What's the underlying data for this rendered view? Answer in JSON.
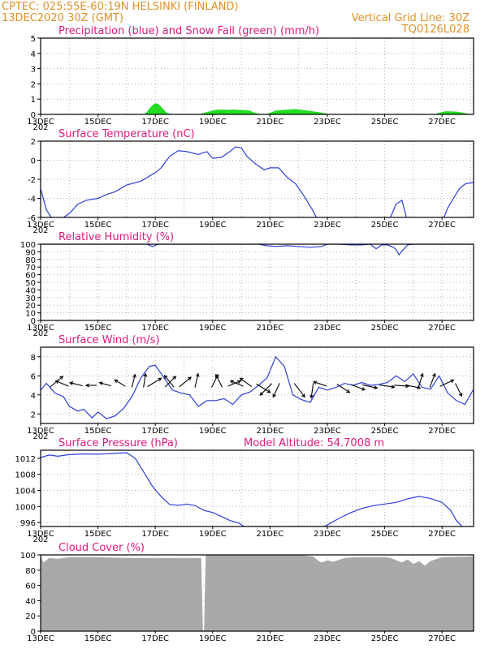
{
  "header": {
    "left_line1": "CPTEC:   025:55E-60:19N   HELSINKI (FINLAND)",
    "left_line2": "13DEC2020 30Z (GMT)",
    "right_line1": "Vertical Grid Line: 30Z",
    "right_line2": "TQ0126L028"
  },
  "x_tick_labels": [
    "13DEC",
    "15DEC",
    "17DEC",
    "19DEC",
    "21DEC",
    "23DEC",
    "25DEC",
    "27DEC"
  ],
  "x_sublabel": "202",
  "colors": {
    "header": "#e0902a",
    "title": "#e0197d",
    "line": "#2b3fd9",
    "snow": "#22dd22",
    "cloud": "#a9a9a9",
    "grid": "#b5b5b5"
  },
  "chart_data": [
    {
      "id": "precip",
      "type": "area",
      "title": "Precipitation (blue) and Snow Fall (green) (mm/h)",
      "ylim": [
        0,
        5
      ],
      "yticks": [
        0,
        1,
        2,
        3,
        4,
        5
      ],
      "xlim": [
        13.0,
        28.1
      ],
      "grid": true,
      "series": [
        {
          "name": "Precipitation",
          "color": "#2b3fd9",
          "x": [
            13.0,
            16.9,
            17.0,
            17.1,
            17.3,
            17.5,
            19.4,
            19.5,
            20.3,
            21.4,
            22.9,
            26.6,
            27.5,
            28.1
          ],
          "values": [
            0,
            0,
            0.02,
            0.05,
            0.02,
            0,
            0,
            0.03,
            0,
            0.03,
            0,
            0,
            0.02,
            0
          ]
        },
        {
          "name": "Snow Fall",
          "color": "#22dd22",
          "x": [
            13.0,
            16.6,
            16.7,
            16.8,
            16.9,
            17.0,
            17.1,
            17.2,
            17.3,
            17.4,
            17.6,
            18.5,
            18.7,
            18.9,
            19.1,
            19.3,
            19.5,
            19.7,
            19.9,
            20.1,
            20.3,
            20.4,
            20.6,
            20.8,
            21.0,
            21.2,
            21.5,
            21.7,
            21.9,
            22.1,
            22.3,
            22.5,
            22.7,
            22.9,
            23.1,
            26.7,
            26.9,
            27.1,
            27.3,
            27.5,
            27.7,
            27.9,
            28.1
          ],
          "values": [
            0,
            0,
            0.15,
            0.4,
            0.6,
            0.72,
            0.7,
            0.5,
            0.3,
            0.1,
            0,
            0,
            0.1,
            0.2,
            0.3,
            0.32,
            0.3,
            0.32,
            0.3,
            0.28,
            0.25,
            0.15,
            0.05,
            0,
            0.1,
            0.25,
            0.3,
            0.32,
            0.35,
            0.3,
            0.25,
            0.2,
            0.15,
            0.08,
            0,
            0,
            0.1,
            0.2,
            0.2,
            0.18,
            0.12,
            0.05,
            0
          ]
        }
      ]
    },
    {
      "id": "temp",
      "type": "line",
      "title": "Surface Temperature (nC)",
      "ylim": [
        -6,
        2
      ],
      "yticks": [
        -6,
        -4,
        -2,
        0,
        2
      ],
      "xlim": [
        13.0,
        28.1
      ],
      "grid": true,
      "series": [
        {
          "color": "#2b3fd9",
          "x": [
            13.0,
            13.2,
            13.5,
            14.0,
            14.3,
            14.6,
            15.0,
            15.3,
            15.6,
            16.0,
            16.5,
            17.0,
            17.2,
            17.5,
            17.8,
            18.1,
            18.5,
            18.8,
            19.0,
            19.3,
            19.6,
            19.8,
            20.0,
            20.2,
            20.5,
            20.8,
            21.0,
            21.3,
            21.6,
            21.9,
            22.2,
            22.5,
            22.7,
            25.2,
            25.4,
            25.6,
            25.8,
            27.0,
            27.2,
            27.4,
            27.6,
            27.8,
            28.1
          ],
          "values": [
            -3.0,
            -5.2,
            -6.6,
            -5.6,
            -4.6,
            -4.2,
            -4.0,
            -3.6,
            -3.3,
            -2.6,
            -2.2,
            -1.3,
            -0.8,
            0.4,
            1.0,
            0.9,
            0.6,
            0.9,
            0.2,
            0.3,
            0.9,
            1.4,
            1.3,
            0.4,
            -0.4,
            -1.0,
            -0.8,
            -0.8,
            -1.8,
            -2.5,
            -3.8,
            -5.3,
            -6.5,
            -6.0,
            -4.6,
            -4.2,
            -6.5,
            -6.5,
            -5.0,
            -4.0,
            -3.0,
            -2.5,
            -2.3
          ]
        }
      ]
    },
    {
      "id": "rh",
      "type": "line",
      "title": "Relative Humidity (%)",
      "ylim": [
        0,
        100
      ],
      "yticks": [
        0,
        10,
        20,
        30,
        40,
        50,
        60,
        70,
        80,
        90,
        100
      ],
      "xlim": [
        13.0,
        28.1
      ],
      "grid": true,
      "series": [
        {
          "color": "#2b3fd9",
          "x": [
            13.0,
            16.7,
            16.9,
            17.1,
            17.3,
            20.6,
            20.9,
            21.2,
            21.6,
            22.0,
            22.4,
            22.8,
            23.0,
            23.4,
            23.8,
            24.2,
            24.5,
            24.7,
            24.9,
            25.1,
            25.3,
            25.4,
            25.5,
            25.6,
            25.8,
            26.0,
            28.1
          ],
          "values": [
            100,
            100,
            97,
            100,
            100,
            100,
            98,
            97,
            98,
            97,
            96,
            97,
            100,
            100,
            99,
            99,
            100,
            94,
            99,
            99,
            96,
            93,
            86,
            91,
            99,
            100,
            100
          ]
        }
      ]
    },
    {
      "id": "wind",
      "type": "line",
      "title": "Surface Wind (m/s)",
      "ylim": [
        1,
        9
      ],
      "yticks": [
        2,
        4,
        6,
        8
      ],
      "xlim": [
        13.0,
        28.1
      ],
      "grid": true,
      "series": [
        {
          "color": "#2b3fd9",
          "x": [
            13.0,
            13.2,
            13.5,
            13.8,
            14.0,
            14.3,
            14.5,
            14.8,
            15.0,
            15.3,
            15.6,
            15.9,
            16.2,
            16.5,
            16.8,
            17.0,
            17.3,
            17.6,
            17.9,
            18.2,
            18.5,
            18.8,
            19.1,
            19.4,
            19.7,
            20.0,
            20.3,
            20.6,
            20.9,
            21.2,
            21.5,
            21.8,
            22.1,
            22.4,
            22.7,
            23.0,
            23.3,
            23.6,
            23.9,
            24.2,
            24.5,
            24.8,
            25.1,
            25.4,
            25.7,
            26.0,
            26.3,
            26.6,
            26.9,
            27.2,
            27.5,
            27.8,
            28.1
          ],
          "values": [
            4.5,
            5.2,
            4.2,
            3.8,
            2.8,
            2.3,
            2.5,
            1.6,
            2.2,
            1.5,
            1.8,
            2.6,
            3.9,
            5.8,
            7.0,
            7.1,
            5.8,
            4.5,
            4.2,
            4.0,
            2.8,
            3.4,
            3.4,
            3.6,
            3.0,
            4.0,
            4.3,
            5.0,
            5.8,
            8.0,
            7.0,
            4.0,
            3.5,
            3.2,
            4.8,
            4.5,
            4.8,
            5.2,
            5.0,
            5.3,
            5.0,
            5.1,
            5.3,
            6.0,
            5.4,
            6.2,
            4.8,
            4.6,
            6.0,
            4.2,
            3.4,
            3.0,
            4.6
          ]
        }
      ],
      "barbs": [
        {
          "day": 13.4,
          "u": 1.2,
          "v": 1.0
        },
        {
          "day": 13.9,
          "u": -1.2,
          "v": 0.5
        },
        {
          "day": 14.4,
          "u": -1.2,
          "v": 0.3
        },
        {
          "day": 14.9,
          "u": -1.0,
          "v": 0.0
        },
        {
          "day": 15.4,
          "u": -1.1,
          "v": 0.3
        },
        {
          "day": 15.9,
          "u": -1.0,
          "v": 0.6
        },
        {
          "day": 16.2,
          "u": 0.3,
          "v": 1.2
        },
        {
          "day": 16.6,
          "u": 0.2,
          "v": 1.3
        },
        {
          "day": 16.8,
          "u": 1.3,
          "v": 0.8
        },
        {
          "day": 17.4,
          "u": 1.0,
          "v": 1.0
        },
        {
          "day": 17.6,
          "u": -0.9,
          "v": 1.1
        },
        {
          "day": 17.9,
          "u": 1.1,
          "v": 0.9
        },
        {
          "day": 18.4,
          "u": 0.3,
          "v": 1.3
        },
        {
          "day": 19.0,
          "u": 0.6,
          "v": 1.2
        },
        {
          "day": 19.3,
          "u": -0.6,
          "v": 1.2
        },
        {
          "day": 19.6,
          "u": 1.2,
          "v": 0.5
        },
        {
          "day": 20.0,
          "u": -1.2,
          "v": 0.5
        },
        {
          "day": 20.3,
          "u": -1.1,
          "v": 0.8
        },
        {
          "day": 20.6,
          "u": 1.3,
          "v": -0.8
        },
        {
          "day": 21.0,
          "u": -1.1,
          "v": -1.1
        },
        {
          "day": 21.3,
          "u": -0.6,
          "v": -1.3
        },
        {
          "day": 21.9,
          "u": 1.0,
          "v": -1.3
        },
        {
          "day": 22.5,
          "u": -0.2,
          "v": -1.4
        },
        {
          "day": 22.9,
          "u": -1.2,
          "v": 0.4
        },
        {
          "day": 23.4,
          "u": 1.2,
          "v": -0.8
        },
        {
          "day": 23.9,
          "u": 1.3,
          "v": -0.5
        },
        {
          "day": 24.3,
          "u": 1.4,
          "v": -0.3
        },
        {
          "day": 24.9,
          "u": 1.4,
          "v": -0.2
        },
        {
          "day": 25.4,
          "u": 1.4,
          "v": -0.1
        },
        {
          "day": 25.8,
          "u": 1.4,
          "v": -0.3
        },
        {
          "day": 26.2,
          "u": 0.4,
          "v": 1.3
        },
        {
          "day": 26.6,
          "u": 0.5,
          "v": 1.3
        },
        {
          "day": 27.0,
          "u": 1.3,
          "v": 0.6
        },
        {
          "day": 27.5,
          "u": 0.6,
          "v": -1.2
        }
      ]
    },
    {
      "id": "pressure",
      "type": "line",
      "title": "Surface Pressure (hPa)",
      "annotation": "Model Altitude: 54.7008 m",
      "ylim": [
        995,
        1014
      ],
      "yticks": [
        996,
        1000,
        1004,
        1008,
        1012
      ],
      "xlim": [
        13.0,
        28.1
      ],
      "grid": true,
      "series": [
        {
          "color": "#2b3fd9",
          "x": [
            13.0,
            13.3,
            13.6,
            14.0,
            14.5,
            15.0,
            15.5,
            16.0,
            16.3,
            16.6,
            16.9,
            17.2,
            17.5,
            17.8,
            18.1,
            18.4,
            18.7,
            19.0,
            19.3,
            19.6,
            19.9,
            20.1,
            22.9,
            23.1,
            23.4,
            23.8,
            24.2,
            24.6,
            25.0,
            25.4,
            25.8,
            26.2,
            26.6,
            27.0,
            27.3,
            27.5,
            27.7
          ],
          "values": [
            1012.2,
            1012.8,
            1012.5,
            1012.9,
            1013.1,
            1013.0,
            1013.2,
            1013.4,
            1012.0,
            1008.5,
            1005.0,
            1002.5,
            1000.5,
            1000.3,
            1000.6,
            1000.2,
            999.0,
            998.5,
            997.5,
            996.5,
            995.9,
            995.0,
            995.0,
            995.8,
            997.0,
            998.4,
            999.5,
            1000.2,
            1000.6,
            1001.0,
            1001.9,
            1002.5,
            1002.0,
            1001.0,
            999.0,
            996.5,
            995.0
          ]
        }
      ]
    },
    {
      "id": "cloud",
      "type": "area",
      "title": "Cloud Cover (%)",
      "ylim": [
        0,
        100
      ],
      "yticks": [
        0,
        20,
        40,
        60,
        80,
        100
      ],
      "xlim": [
        13.0,
        28.1
      ],
      "grid": true,
      "series": [
        {
          "color": "#a9a9a9",
          "x": [
            13.0,
            13.1,
            13.3,
            13.6,
            14.0,
            15.0,
            16.0,
            17.0,
            18.0,
            18.6,
            18.66,
            18.7,
            18.76,
            19.0,
            20.0,
            21.0,
            22.0,
            22.5,
            22.7,
            22.8,
            23.0,
            23.2,
            23.6,
            24.0,
            24.5,
            25.0,
            25.2,
            25.4,
            25.6,
            25.8,
            26.0,
            26.2,
            26.4,
            26.6,
            27.0,
            28.1
          ],
          "values": [
            100,
            90,
            96,
            95,
            97,
            97,
            96,
            96,
            96,
            96,
            0,
            0,
            100,
            100,
            100,
            100,
            100,
            98,
            92,
            90,
            93,
            91,
            96,
            97,
            97,
            97,
            96,
            93,
            90,
            94,
            88,
            92,
            86,
            92,
            97,
            98
          ]
        }
      ]
    }
  ]
}
